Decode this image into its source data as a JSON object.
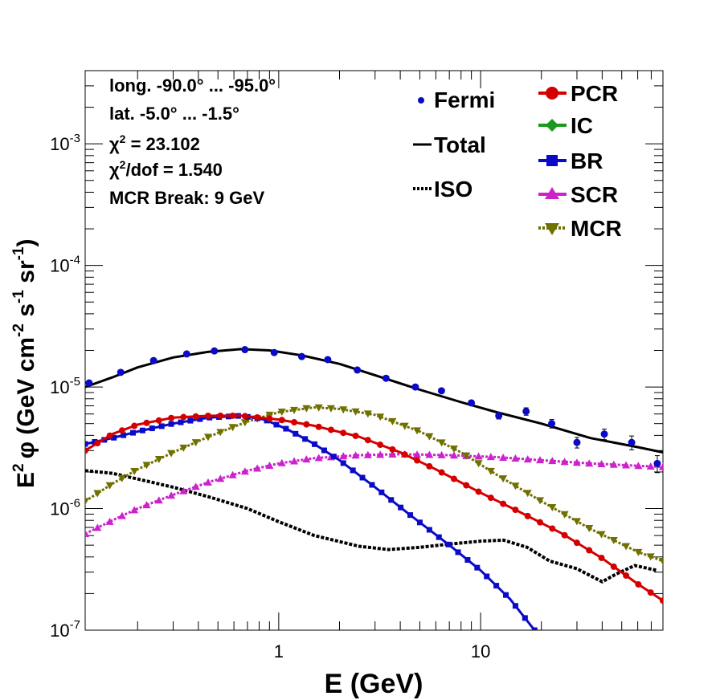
{
  "chart_data": {
    "type": "line",
    "xlabel": "E (GeV)",
    "ylabel_main": "E",
    "ylabel_exp": "2",
    "ylabel_units": "φ (GeV cm",
    "ylabel_units_exp1": "-2",
    "ylabel_units_s": " s",
    "ylabel_units_exp2": "-1",
    "ylabel_units_sr": " sr",
    "ylabel_units_exp3": "-1",
    "ylabel_close": ")",
    "xscale": "log",
    "yscale": "log",
    "xlim": [
      0.11,
      80
    ],
    "ylim": [
      1e-07,
      0.004
    ],
    "xticks": [
      {
        "v": 1,
        "label": "1"
      },
      {
        "v": 10,
        "label": "10"
      }
    ],
    "yticks": [
      {
        "v": 1e-07,
        "base": "10",
        "exp": "-7"
      },
      {
        "v": 1e-06,
        "base": "10",
        "exp": "-6"
      },
      {
        "v": 1e-05,
        "base": "10",
        "exp": "-5"
      },
      {
        "v": 0.0001,
        "base": "10",
        "exp": "-4"
      },
      {
        "v": 0.001,
        "base": "10",
        "exp": "-3"
      }
    ],
    "info": {
      "line1": "long. -90.0° ... -95.0°",
      "line2": "lat. -5.0° ... -1.5°",
      "chi_sym": "χ",
      "chi_exp": "2",
      "chi_val": " = 23.102",
      "chidof_rest": "/dof = 1.540",
      "line5": "MCR Break:  9 GeV"
    },
    "legend_left": [
      {
        "name": "Fermi",
        "style": "points",
        "color": "#0a0ac8"
      },
      {
        "name": "Total",
        "style": "solid",
        "color": "#000000"
      },
      {
        "name": "ISO",
        "style": "dotted",
        "color": "#000000"
      }
    ],
    "legend_right": [
      {
        "name": "PCR",
        "marker": "circle",
        "color": "#d40000"
      },
      {
        "name": "IC",
        "marker": "diamond",
        "color": "#1a9a1a"
      },
      {
        "name": "BR",
        "marker": "square",
        "color": "#0a0ac8"
      },
      {
        "name": "SCR",
        "marker": "triangle-up",
        "color": "#cc22cc"
      },
      {
        "name": "MCR",
        "marker": "triangle-down",
        "color": "#707000"
      }
    ],
    "series": [
      {
        "name": "Total",
        "color": "#000000",
        "marker": "none",
        "width": 3,
        "x": [
          0.11,
          0.15,
          0.2,
          0.3,
          0.45,
          0.65,
          0.9,
          1.3,
          2,
          3,
          5,
          8,
          12,
          20,
          35,
          60,
          80
        ],
        "y": [
          1e-05,
          1.2e-05,
          1.45e-05,
          1.75e-05,
          1.95e-05,
          2.05e-05,
          2e-05,
          1.82e-05,
          1.55e-05,
          1.25e-05,
          9.5e-06,
          7.5e-06,
          6.2e-06,
          5e-06,
          3.8e-06,
          3.2e-06,
          2.9e-06
        ]
      },
      {
        "name": "PCR",
        "color": "#d40000",
        "marker": "circle",
        "x": [
          0.11,
          0.15,
          0.2,
          0.3,
          0.45,
          0.65,
          1,
          1.5,
          2.5,
          4,
          6,
          10,
          15,
          25,
          40,
          60,
          80
        ],
        "y": [
          3e-06,
          4.1e-06,
          4.9e-06,
          5.6e-06,
          5.8e-06,
          5.8e-06,
          5.4e-06,
          4.8e-06,
          3.9e-06,
          2.9e-06,
          2.1e-06,
          1.35e-06,
          9.7e-07,
          6.3e-07,
          3.9e-07,
          2.4e-07,
          1.75e-07
        ]
      },
      {
        "name": "BR",
        "color": "#0a0ac8",
        "marker": "square",
        "x": [
          0.11,
          0.15,
          0.2,
          0.3,
          0.45,
          0.65,
          0.85,
          1.1,
          1.5,
          2,
          3,
          4.5,
          7,
          10,
          14,
          18.5
        ],
        "y": [
          3.4e-06,
          3.8e-06,
          4.3e-06,
          5e-06,
          5.6e-06,
          5.8e-06,
          5.4e-06,
          4.5e-06,
          3.4e-06,
          2.5e-06,
          1.5e-06,
          8.8e-07,
          5e-07,
          3.1e-07,
          1.8e-07,
          1e-07
        ]
      },
      {
        "name": "MCR",
        "color": "#707000",
        "marker": "triangle-down",
        "x": [
          0.11,
          0.15,
          0.2,
          0.3,
          0.45,
          0.7,
          1,
          1.5,
          2,
          3,
          5,
          8,
          12,
          20,
          35,
          60,
          80
        ],
        "y": [
          1.15e-06,
          1.6e-06,
          2.1e-06,
          2.9e-06,
          3.9e-06,
          5.2e-06,
          6.2e-06,
          6.8e-06,
          6.6e-06,
          5.9e-06,
          4.3e-06,
          2.9e-06,
          1.9e-06,
          1.15e-06,
          6.8e-07,
          4.4e-07,
          3.7e-07
        ]
      },
      {
        "name": "SCR",
        "color": "#cc22cc",
        "marker": "triangle-up",
        "x": [
          0.11,
          0.15,
          0.2,
          0.3,
          0.45,
          0.7,
          1,
          1.5,
          2.5,
          4,
          7,
          12,
          20,
          35,
          60,
          80
        ],
        "y": [
          6.2e-07,
          8e-07,
          1e-06,
          1.3e-06,
          1.65e-06,
          2.05e-06,
          2.35e-06,
          2.6e-06,
          2.75e-06,
          2.8e-06,
          2.75e-06,
          2.65e-06,
          2.5e-06,
          2.35e-06,
          2.25e-06,
          2.2e-06
        ]
      },
      {
        "name": "ISO",
        "color": "#000000",
        "marker": "dotted",
        "x": [
          0.11,
          0.15,
          0.2,
          0.3,
          0.45,
          0.7,
          1,
          1.5,
          2.5,
          3.5,
          5,
          7,
          10,
          13,
          17,
          22,
          30,
          40,
          47,
          58,
          75
        ],
        "y": [
          2.05e-06,
          1.95e-06,
          1.75e-06,
          1.5e-06,
          1.25e-06,
          1e-06,
          7.8e-07,
          6e-07,
          4.9e-07,
          4.6e-07,
          4.8e-07,
          5.1e-07,
          5.4e-07,
          5.5e-07,
          4.8e-07,
          3.7e-07,
          3.2e-07,
          2.5e-07,
          2.9e-07,
          3.4e-07,
          3.1e-07
        ]
      }
    ],
    "fermi_points": {
      "x": [
        0.115,
        0.165,
        0.24,
        0.35,
        0.48,
        0.68,
        0.95,
        1.3,
        1.75,
        2.45,
        3.4,
        4.75,
        6.4,
        9,
        12.3,
        16.8,
        22.5,
        30,
        41,
        56,
        75
      ],
      "y": [
        1.08e-05,
        1.32e-05,
        1.65e-05,
        1.87e-05,
        1.98e-05,
        2.03e-05,
        1.92e-05,
        1.78e-05,
        1.68e-05,
        1.38e-05,
        1.18e-05,
        1e-05,
        9.3e-06,
        7.4e-06,
        5.8e-06,
        6.3e-06,
        5e-06,
        3.5e-06,
        4.1e-06,
        3.5e-06,
        2.35e-06
      ],
      "err": [
        0.03,
        0.03,
        0.03,
        0.03,
        0.03,
        0.03,
        0.03,
        0.03,
        0.03,
        0.03,
        0.03,
        0.04,
        0.04,
        0.05,
        0.06,
        0.07,
        0.08,
        0.1,
        0.1,
        0.13,
        0.16
      ]
    }
  }
}
